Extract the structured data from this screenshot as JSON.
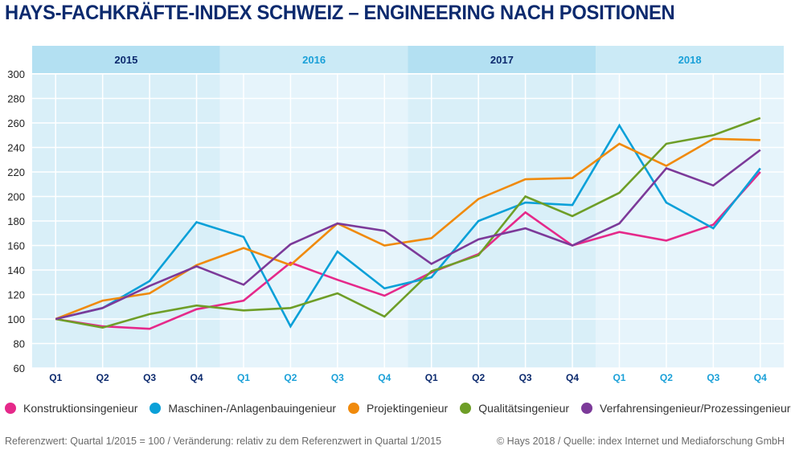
{
  "title": "HAYS-FACHKRÄFTE-INDEX SCHWEIZ – ENGINEERING NACH POSITIONEN",
  "chart_data": {
    "type": "line",
    "title": "HAYS-FACHKRÄFTE-INDEX SCHWEIZ – ENGINEERING NACH POSITIONEN",
    "xlabel": "",
    "ylabel": "",
    "ylim": [
      60,
      300
    ],
    "yticks": [
      60,
      80,
      100,
      120,
      140,
      160,
      180,
      200,
      220,
      240,
      260,
      280,
      300
    ],
    "grid": true,
    "legend_position": "bottom",
    "years": [
      {
        "label": "2015",
        "color": "#0c2a6e",
        "band": "#b3e0f2",
        "plot_band": "#d9eff8"
      },
      {
        "label": "2016",
        "color": "#1aa0d8",
        "band": "#cbeaf6",
        "plot_band": "#e6f4fb"
      },
      {
        "label": "2017",
        "color": "#0c2a6e",
        "band": "#b3e0f2",
        "plot_band": "#d9eff8"
      },
      {
        "label": "2018",
        "color": "#1aa0d8",
        "band": "#cbeaf6",
        "plot_band": "#e6f4fb"
      }
    ],
    "categories": [
      "Q1",
      "Q2",
      "Q3",
      "Q4",
      "Q1",
      "Q2",
      "Q3",
      "Q4",
      "Q1",
      "Q2",
      "Q3",
      "Q4",
      "Q1",
      "Q2",
      "Q3",
      "Q4"
    ],
    "series": [
      {
        "name": "Konstruktionsingenieur",
        "color": "#e5298a",
        "values": [
          100,
          94,
          92,
          108,
          115,
          146,
          132,
          119,
          138,
          153,
          187,
          160,
          171,
          164,
          177,
          220
        ]
      },
      {
        "name": "Maschinen-/Anlagenbauingenieur",
        "color": "#0aa0d8",
        "values": [
          100,
          109,
          131,
          179,
          167,
          94,
          155,
          125,
          134,
          180,
          195,
          193,
          258,
          195,
          174,
          223
        ]
      },
      {
        "name": "Projektingenieur",
        "color": "#f08a0c",
        "values": [
          100,
          115,
          121,
          144,
          158,
          144,
          178,
          160,
          166,
          198,
          214,
          215,
          243,
          225,
          247,
          246
        ]
      },
      {
        "name": "Qualitätsingenieur",
        "color": "#6e9e27",
        "values": [
          100,
          93,
          104,
          111,
          107,
          109,
          121,
          102,
          139,
          152,
          200,
          184,
          203,
          243,
          250,
          264
        ]
      },
      {
        "name": "Verfahrensingenieur/Prozessingenieur",
        "color": "#7c3a99",
        "values": [
          100,
          109,
          127,
          143,
          128,
          161,
          178,
          172,
          145,
          165,
          174,
          160,
          178,
          223,
          209,
          238
        ]
      }
    ]
  },
  "footer": {
    "left": "Referenzwert: Quartal 1/2015 = 100 / Veränderung: relativ zu dem Referenzwert in Quartal 1/2015",
    "right": "© Hays 2018 / Quelle: index Internet und Mediaforschung GmbH"
  }
}
